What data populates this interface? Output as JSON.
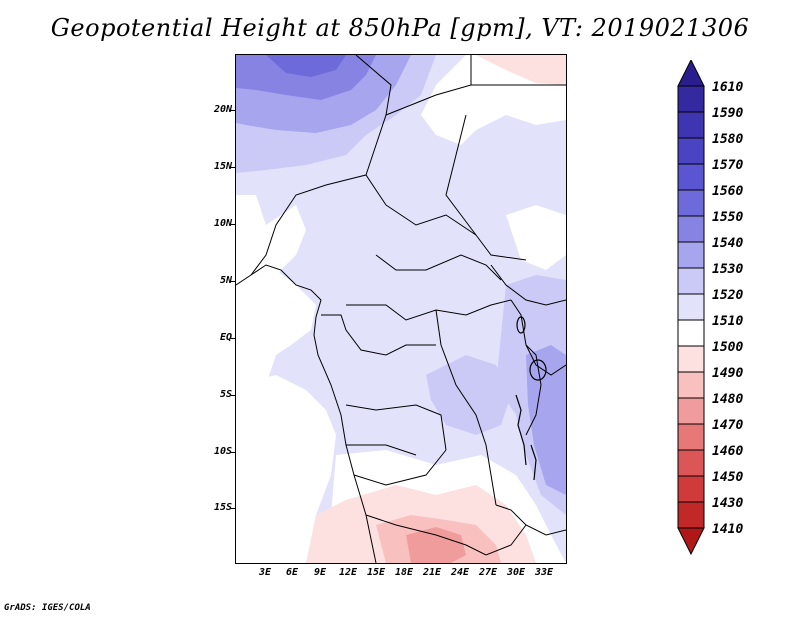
{
  "title": "Geopotential Height at 850hPa [gpm], VT: 2019021306",
  "footer": "GrADS: IGES/COLA",
  "map": {
    "lat_range": [
      -20,
      25
    ],
    "lon_range": [
      0,
      35
    ],
    "lat_ticks": [
      "20N",
      "15N",
      "10N",
      "5N",
      "EQ",
      "5S",
      "10S",
      "15S"
    ],
    "lon_ticks": [
      "3E",
      "6E",
      "9E",
      "12E",
      "15E",
      "18E",
      "21E",
      "24E",
      "27E",
      "30E",
      "33E"
    ]
  },
  "colorbar": {
    "levels": [
      "1610",
      "1590",
      "1580",
      "1570",
      "1560",
      "1550",
      "1540",
      "1530",
      "1520",
      "1510",
      "1500",
      "1490",
      "1480",
      "1470",
      "1460",
      "1450",
      "1430",
      "1410"
    ],
    "colors": [
      "#2a1e8e",
      "#34299f",
      "#3f35b1",
      "#4b44c2",
      "#5a55d0",
      "#6d6ad9",
      "#8683e3",
      "#a7a5ed",
      "#cbcaf6",
      "#e2e2fb",
      "#ffffff",
      "#fde0e0",
      "#f9c0c0",
      "#f19c9c",
      "#e77878",
      "#db5656",
      "#cf3b3b",
      "#c12828",
      "#b01818"
    ],
    "colors_note": "19 fill bands from top (>1610) to bottom (<1410)"
  }
}
